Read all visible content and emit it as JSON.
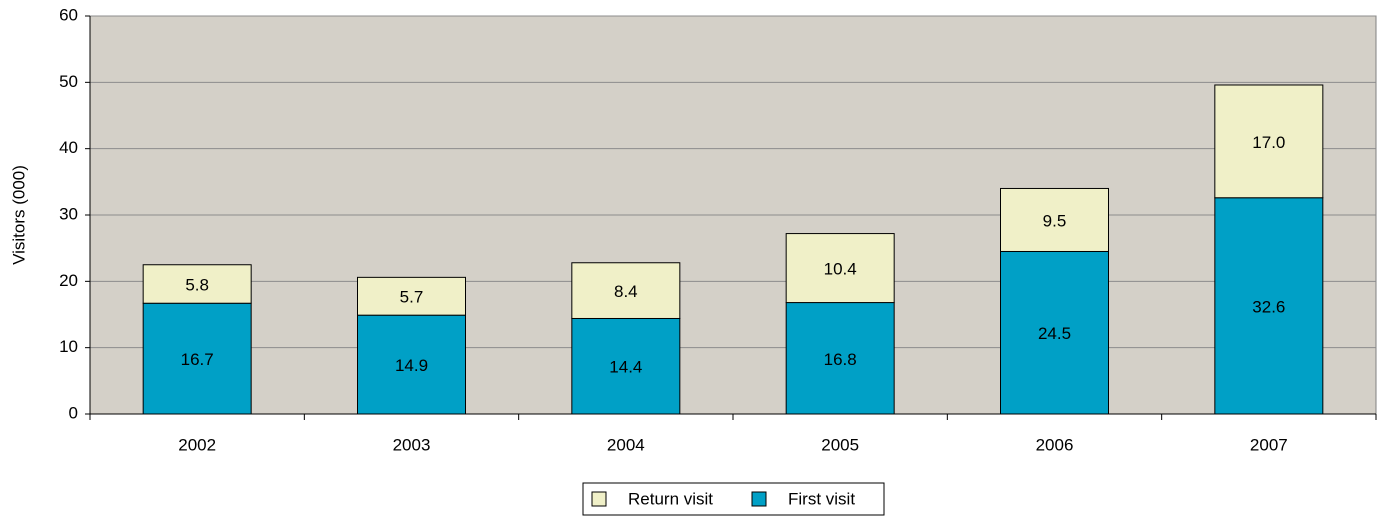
{
  "chart_data": {
    "type": "stacked_bar",
    "y_label": "Visitors (000)",
    "categories": [
      "2002",
      "2003",
      "2004",
      "2005",
      "2006",
      "2007"
    ],
    "series": [
      {
        "name": "First visit",
        "color": "#00a0c6",
        "values": [
          16.7,
          14.9,
          14.4,
          16.8,
          24.5,
          32.6
        ],
        "value_labels": [
          "16.7",
          "14.9",
          "14.4",
          "16.8",
          "24.5",
          "32.6"
        ]
      },
      {
        "name": "Return visit",
        "color": "#f0f0c8",
        "values": [
          5.8,
          5.7,
          8.4,
          10.4,
          9.5,
          17.0
        ],
        "value_labels": [
          "5.8",
          "5.7",
          "8.4",
          "10.4",
          "9.5",
          "17.0"
        ]
      }
    ],
    "ylim": [
      0,
      60
    ],
    "yticks": [
      0,
      10,
      20,
      30,
      40,
      50,
      60
    ],
    "grid": true,
    "background": "#d4d0c8",
    "legend": "bottom"
  }
}
